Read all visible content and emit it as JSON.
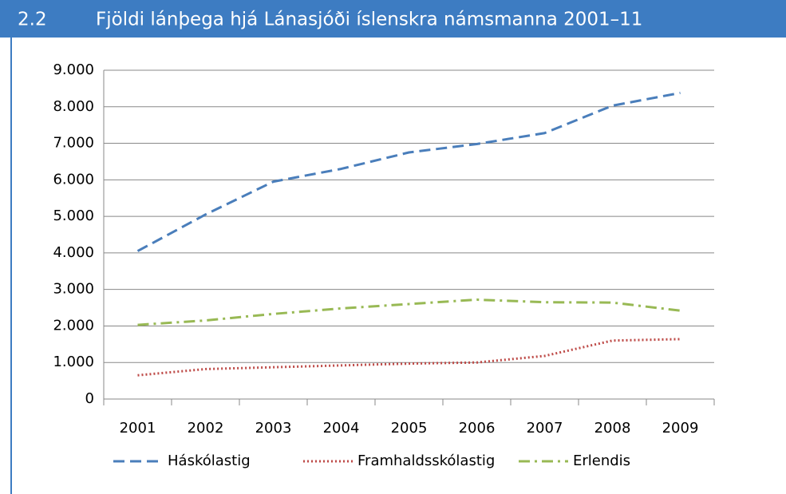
{
  "header": {
    "number": "2.2",
    "title": "Fjöldi lánþega hjá Lánasjóði íslenskra námsmanna 2001–11"
  },
  "chart_data": {
    "type": "line",
    "categories": [
      "2001",
      "2002",
      "2003",
      "2004",
      "2005",
      "2006",
      "2007",
      "2008",
      "2009"
    ],
    "series": [
      {
        "name": "Háskólastig",
        "color": "#4a7ebb",
        "style": "dashed",
        "values": [
          4050,
          5050,
          5950,
          6300,
          6750,
          6980,
          7280,
          8030,
          8380
        ]
      },
      {
        "name": "Framhaldsskólastig",
        "color": "#be4b48",
        "style": "dotted",
        "values": [
          650,
          820,
          870,
          920,
          970,
          1000,
          1180,
          1600,
          1640
        ]
      },
      {
        "name": "Erlendis",
        "color": "#98b954",
        "style": "dashdot",
        "values": [
          2030,
          2150,
          2330,
          2480,
          2600,
          2720,
          2650,
          2640,
          2420
        ]
      }
    ],
    "ylim": [
      0,
      9000
    ],
    "yticks": [
      0,
      {
        "value": 1000,
        "label": "1.000"
      },
      {
        "value": 2000,
        "label": "2.000"
      },
      {
        "value": 3000,
        "label": "3.000"
      },
      {
        "value": 4000,
        "label": "4.000"
      },
      {
        "value": 5000,
        "label": "5.000"
      },
      {
        "value": 6000,
        "label": "6.000"
      },
      {
        "value": 7000,
        "label": "7.000"
      },
      {
        "value": 8000,
        "label": "8.000"
      },
      {
        "value": 9000,
        "label": "9.000"
      }
    ],
    "grid": true,
    "legend": "bottom"
  }
}
